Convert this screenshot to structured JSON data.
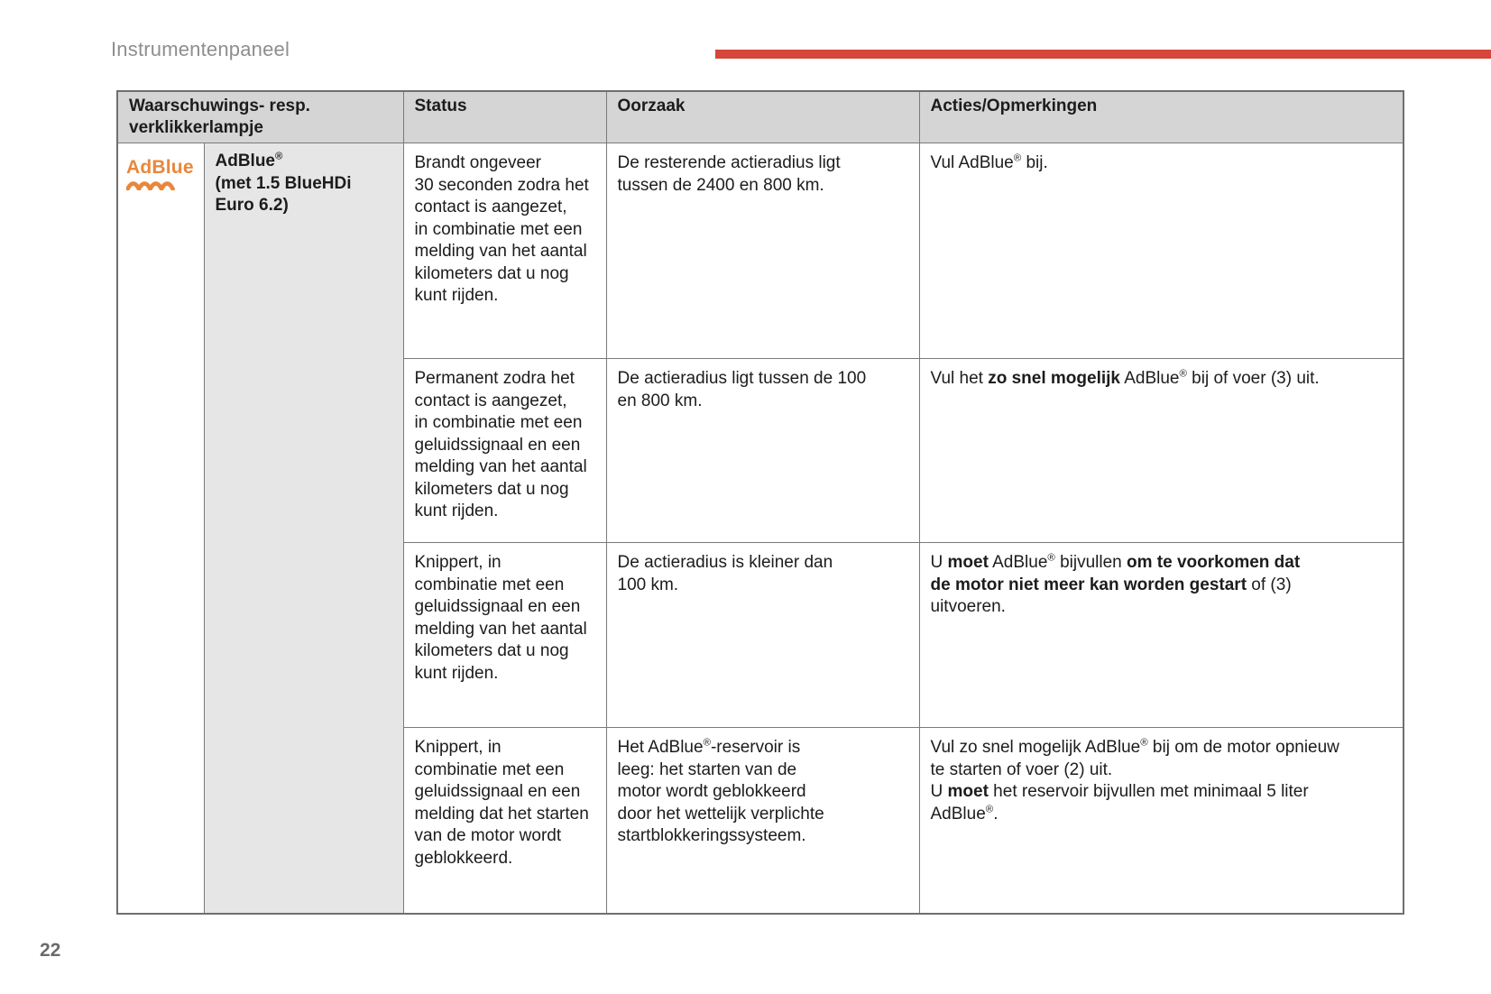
{
  "page": {
    "title": "Instrumentenpaneel",
    "page_number": "22",
    "accent_color": "#d5463c"
  },
  "logo": {
    "text": "AdBlue",
    "color": "#e8873b",
    "icon": "adblue-wave-icon"
  },
  "table": {
    "headers": {
      "lamp": "Waarschuwings- resp.\nverklikkerlampje",
      "status": "Status",
      "cause": "Oorzaak",
      "actions": "Acties/Opmerkingen"
    },
    "lamp_label_rich": [
      {
        "t": "AdBlue"
      },
      {
        "t": "®",
        "sup": true
      },
      {
        "t": "\n(met 1.5 BlueHDi\nEuro 6.2)"
      }
    ],
    "rows": [
      {
        "status": "Brandt ongeveer\n30 seconden zodra het\ncontact is aangezet,\nin combinatie met een\nmelding van het aantal\nkilometers dat u nog\nkunt rijden.",
        "cause_rich": [
          {
            "t": "De resterende actieradius ligt\ntussen de 2400 en 800 km."
          }
        ],
        "actions_rich": [
          {
            "t": "Vul AdBlue"
          },
          {
            "t": "®",
            "sup": true
          },
          {
            "t": " bij."
          }
        ]
      },
      {
        "status": "Permanent zodra het\ncontact is aangezet,\nin combinatie met een\ngeluidssignaal en een\nmelding van het aantal\nkilometers dat u nog\nkunt rijden.",
        "cause_rich": [
          {
            "t": "De actieradius ligt tussen de 100\nen 800 km."
          }
        ],
        "actions_rich": [
          {
            "t": "Vul het "
          },
          {
            "t": "zo snel mogelijk",
            "b": true
          },
          {
            "t": " AdBlue"
          },
          {
            "t": "®",
            "sup": true
          },
          {
            "t": " bij of voer (3) uit."
          }
        ]
      },
      {
        "status": "Knippert, in\ncombinatie met een\ngeluidssignaal en een\nmelding van het aantal\nkilometers dat u nog\nkunt rijden.",
        "cause_rich": [
          {
            "t": "De actieradius is kleiner dan\n100 km."
          }
        ],
        "actions_rich": [
          {
            "t": "U "
          },
          {
            "t": "moet",
            "b": true
          },
          {
            "t": " AdBlue"
          },
          {
            "t": "®",
            "sup": true
          },
          {
            "t": " bijvullen "
          },
          {
            "t": "om te voorkomen dat\nde motor niet meer kan worden gestart",
            "b": true
          },
          {
            "t": " of (3)\nuitvoeren."
          }
        ]
      },
      {
        "status": "Knippert, in\ncombinatie met een\ngeluidssignaal en een\nmelding dat het starten\nvan de motor wordt\ngeblokkeerd.",
        "cause_rich": [
          {
            "t": "Het AdBlue"
          },
          {
            "t": "®",
            "sup": true
          },
          {
            "t": "-reservoir is\nleeg: het starten van de\nmotor wordt geblokkeerd\ndoor het wettelijk verplichte\nstartblokkeringssysteem."
          }
        ],
        "actions_rich": [
          {
            "t": "Vul zo snel mogelijk AdBlue"
          },
          {
            "t": "®",
            "sup": true
          },
          {
            "t": " bij om de motor opnieuw\nte starten of voer (2) uit.\nU "
          },
          {
            "t": "moet",
            "b": true
          },
          {
            "t": " het reservoir bijvullen met minimaal 5 liter\nAdBlue"
          },
          {
            "t": "®",
            "sup": true
          },
          {
            "t": "."
          }
        ]
      }
    ]
  }
}
